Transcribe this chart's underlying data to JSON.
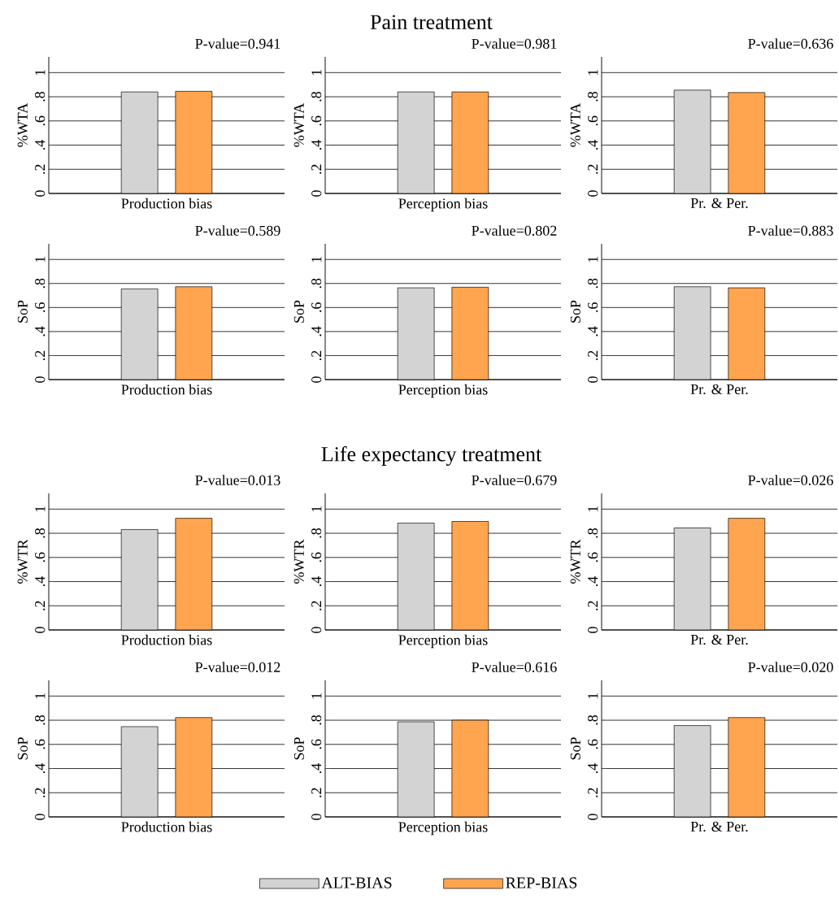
{
  "chart_data": [
    {
      "type": "bar",
      "subtitle": "P-value=0.941",
      "xlabel": "Production bias",
      "ylabel": "%WTA",
      "categories": [
        null
      ],
      "series": [
        {
          "color": "#d3d3d3",
          "values": [
            0.84
          ]
        },
        {
          "color": "#ffa54f",
          "values": [
            0.845
          ]
        }
      ],
      "ylim": [
        0,
        1.13
      ],
      "yticks": [
        0,
        {
          "value": 0.2,
          "label": ".2"
        },
        {
          "value": 0.4,
          "label": ".4"
        },
        {
          "value": 0.6,
          "label": ".6"
        },
        {
          "value": 0.8,
          "label": ".8"
        },
        1
      ],
      "grid": "y"
    },
    {
      "type": "bar",
      "title": "Pain treatment",
      "subtitle": "P-value=0.981",
      "xlabel": "Perception bias",
      "ylabel": "%WTA",
      "categories": [
        null
      ],
      "series": [
        {
          "color": "#d3d3d3",
          "values": [
            0.84
          ]
        },
        {
          "color": "#ffa54f",
          "values": [
            0.84
          ]
        }
      ],
      "ylim": [
        0,
        1.13
      ],
      "yticks": [
        0,
        {
          "value": 0.2,
          "label": ".2"
        },
        {
          "value": 0.4,
          "label": ".4"
        },
        {
          "value": 0.6,
          "label": ".6"
        },
        {
          "value": 0.8,
          "label": ".8"
        },
        1
      ],
      "grid": "y"
    },
    {
      "type": "bar",
      "subtitle": "P-value=0.636",
      "xlabel": "Pr. & Per.",
      "ylabel": "%WTA",
      "categories": [
        null
      ],
      "series": [
        {
          "color": "#d3d3d3",
          "values": [
            0.855
          ]
        },
        {
          "color": "#ffa54f",
          "values": [
            0.835
          ]
        }
      ],
      "ylim": [
        0,
        1.13
      ],
      "yticks": [
        0,
        {
          "value": 0.2,
          "label": ".2"
        },
        {
          "value": 0.4,
          "label": ".4"
        },
        {
          "value": 0.6,
          "label": ".6"
        },
        {
          "value": 0.8,
          "label": ".8"
        },
        1
      ],
      "grid": "y"
    },
    {
      "type": "bar",
      "subtitle": "P-value=0.589",
      "xlabel": "Production bias",
      "ylabel": "SoP",
      "categories": [
        null
      ],
      "series": [
        {
          "color": "#d3d3d3",
          "values": [
            0.755
          ]
        },
        {
          "color": "#ffa54f",
          "values": [
            0.773
          ]
        }
      ],
      "ylim": [
        0,
        1.13
      ],
      "yticks": [
        0,
        {
          "value": 0.2,
          "label": ".2"
        },
        {
          "value": 0.4,
          "label": ".4"
        },
        {
          "value": 0.6,
          "label": ".6"
        },
        {
          "value": 0.8,
          "label": ".8"
        },
        1
      ],
      "grid": "y"
    },
    {
      "type": "bar",
      "subtitle": "P-value=0.802",
      "xlabel": "Perception bias",
      "ylabel": "SoP",
      "categories": [
        null
      ],
      "series": [
        {
          "color": "#d3d3d3",
          "values": [
            0.764
          ]
        },
        {
          "color": "#ffa54f",
          "values": [
            0.769
          ]
        }
      ],
      "ylim": [
        0,
        1.13
      ],
      "yticks": [
        0,
        {
          "value": 0.2,
          "label": ".2"
        },
        {
          "value": 0.4,
          "label": ".4"
        },
        {
          "value": 0.6,
          "label": ".6"
        },
        {
          "value": 0.8,
          "label": ".8"
        },
        1
      ],
      "grid": "y"
    },
    {
      "type": "bar",
      "subtitle": "P-value=0.883",
      "xlabel": "Pr. & Per.",
      "ylabel": "SoP",
      "categories": [
        null
      ],
      "series": [
        {
          "color": "#d3d3d3",
          "values": [
            0.773
          ]
        },
        {
          "color": "#ffa54f",
          "values": [
            0.764
          ]
        }
      ],
      "ylim": [
        0,
        1.13
      ],
      "yticks": [
        0,
        {
          "value": 0.2,
          "label": ".2"
        },
        {
          "value": 0.4,
          "label": ".4"
        },
        {
          "value": 0.6,
          "label": ".6"
        },
        {
          "value": 0.8,
          "label": ".8"
        },
        1
      ],
      "grid": "y"
    },
    {
      "type": "bar",
      "subtitle": "P-value=0.013",
      "xlabel": "Production bias",
      "ylabel": "%WTR",
      "categories": [
        null
      ],
      "series": [
        {
          "color": "#d3d3d3",
          "values": [
            0.831
          ]
        },
        {
          "color": "#ffa54f",
          "values": [
            0.924
          ]
        }
      ],
      "ylim": [
        0,
        1.13
      ],
      "yticks": [
        0,
        {
          "value": 0.2,
          "label": ".2"
        },
        {
          "value": 0.4,
          "label": ".4"
        },
        {
          "value": 0.6,
          "label": ".6"
        },
        {
          "value": 0.8,
          "label": ".8"
        },
        1
      ],
      "grid": "y"
    },
    {
      "type": "bar",
      "title": "Life expectancy treatment",
      "subtitle": "P-value=0.679",
      "xlabel": "Perception bias",
      "ylabel": "%WTR",
      "categories": [
        null
      ],
      "series": [
        {
          "color": "#d3d3d3",
          "values": [
            0.884
          ]
        },
        {
          "color": "#ffa54f",
          "values": [
            0.898
          ]
        }
      ],
      "ylim": [
        0,
        1.13
      ],
      "yticks": [
        0,
        {
          "value": 0.2,
          "label": ".2"
        },
        {
          "value": 0.4,
          "label": ".4"
        },
        {
          "value": 0.6,
          "label": ".6"
        },
        {
          "value": 0.8,
          "label": ".8"
        },
        1
      ],
      "grid": "y"
    },
    {
      "type": "bar",
      "subtitle": "P-value=0.026",
      "xlabel": "Pr. & Per.",
      "ylabel": "%WTR",
      "categories": [
        null
      ],
      "series": [
        {
          "color": "#d3d3d3",
          "values": [
            0.844
          ]
        },
        {
          "color": "#ffa54f",
          "values": [
            0.924
          ]
        }
      ],
      "ylim": [
        0,
        1.13
      ],
      "yticks": [
        0,
        {
          "value": 0.2,
          "label": ".2"
        },
        {
          "value": 0.4,
          "label": ".4"
        },
        {
          "value": 0.6,
          "label": ".6"
        },
        {
          "value": 0.8,
          "label": ".8"
        },
        1
      ],
      "grid": "y"
    },
    {
      "type": "bar",
      "subtitle": "P-value=0.012",
      "xlabel": "Production bias",
      "ylabel": "SoP",
      "categories": [
        null
      ],
      "series": [
        {
          "color": "#d3d3d3",
          "values": [
            0.747
          ]
        },
        {
          "color": "#ffa54f",
          "values": [
            0.822
          ]
        }
      ],
      "ylim": [
        0,
        1.13
      ],
      "yticks": [
        0,
        {
          "value": 0.2,
          "label": ".2"
        },
        {
          "value": 0.4,
          "label": ".4"
        },
        {
          "value": 0.6,
          "label": ".6"
        },
        {
          "value": 0.8,
          "label": ".8"
        },
        1
      ],
      "grid": "y"
    },
    {
      "type": "bar",
      "subtitle": "P-value=0.616",
      "xlabel": "Perception bias",
      "ylabel": "SoP",
      "categories": [
        null
      ],
      "series": [
        {
          "color": "#d3d3d3",
          "values": [
            0.787
          ]
        },
        {
          "color": "#ffa54f",
          "values": [
            0.8
          ]
        }
      ],
      "ylim": [
        0,
        1.13
      ],
      "yticks": [
        0,
        {
          "value": 0.2,
          "label": ".2"
        },
        {
          "value": 0.4,
          "label": ".4"
        },
        {
          "value": 0.6,
          "label": ".6"
        },
        {
          "value": 0.8,
          "label": ".8"
        },
        1
      ],
      "grid": "y"
    },
    {
      "type": "bar",
      "subtitle": "P-value=0.020",
      "xlabel": "Pr. & Per.",
      "ylabel": "SoP",
      "categories": [
        null
      ],
      "series": [
        {
          "name": "ALT-BIAS",
          "color": "#d3d3d3",
          "values": [
            0.756
          ]
        },
        {
          "name": "REP-BIAS",
          "color": "#ffa54f",
          "values": [
            0.822
          ]
        }
      ],
      "ylim": [
        0,
        1.13
      ],
      "yticks": [
        0,
        {
          "value": 0.2,
          "label": ".2"
        },
        {
          "value": 0.4,
          "label": ".4"
        },
        {
          "value": 0.6,
          "label": ".6"
        },
        {
          "value": 0.8,
          "label": ".8"
        },
        1
      ],
      "grid": "y",
      "legend": "bottom"
    }
  ]
}
